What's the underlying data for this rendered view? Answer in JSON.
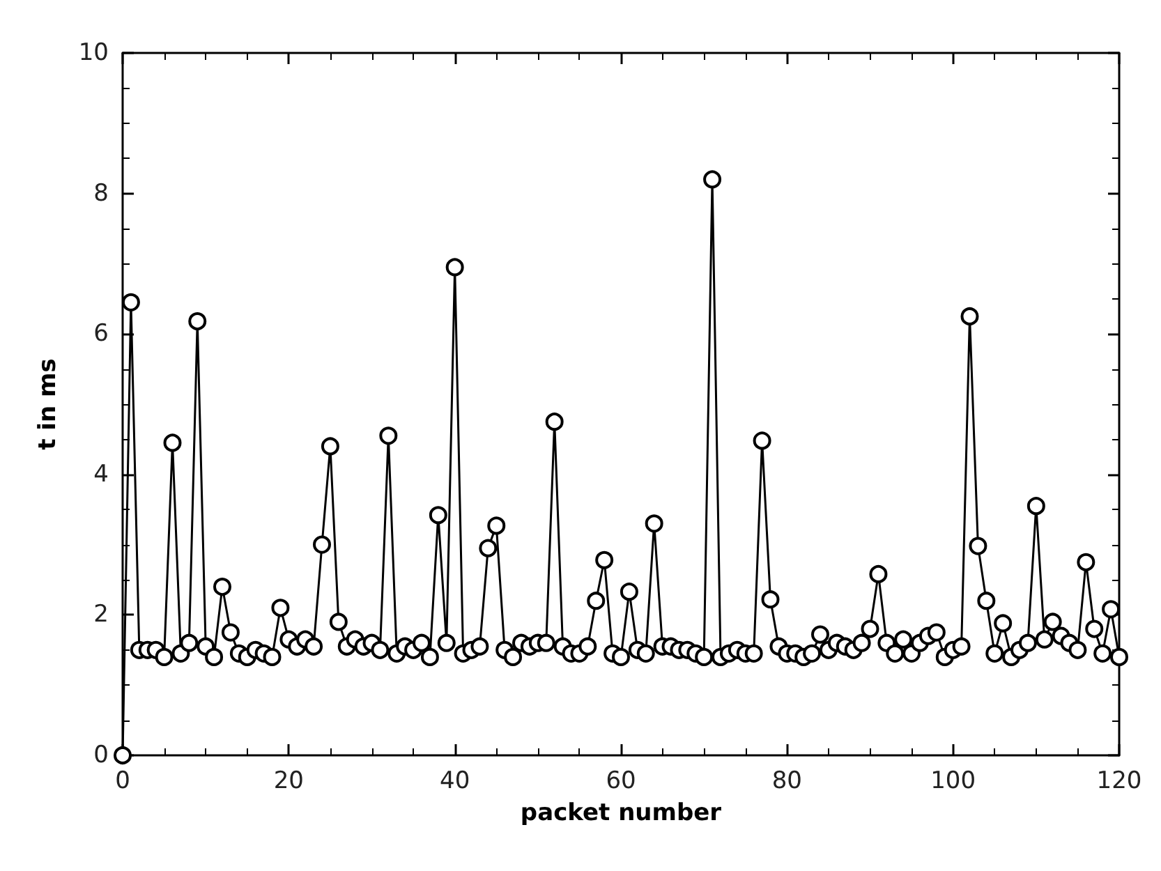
{
  "chart_data": {
    "type": "line",
    "xlabel": "packet number",
    "ylabel": "t in ms",
    "x": [
      0,
      1,
      2,
      3,
      4,
      5,
      6,
      7,
      8,
      9,
      10,
      11,
      12,
      13,
      14,
      15,
      16,
      17,
      18,
      19,
      20,
      21,
      22,
      23,
      24,
      25,
      26,
      27,
      28,
      29,
      30,
      31,
      32,
      33,
      34,
      35,
      36,
      37,
      38,
      39,
      40,
      41,
      42,
      43,
      44,
      45,
      46,
      47,
      48,
      49,
      50,
      51,
      52,
      53,
      54,
      55,
      56,
      57,
      58,
      59,
      60,
      61,
      62,
      63,
      64,
      65,
      66,
      67,
      68,
      69,
      70,
      71,
      72,
      73,
      74,
      75,
      76,
      77,
      78,
      79,
      80,
      81,
      82,
      83,
      84,
      85,
      86,
      87,
      88,
      89,
      90,
      91,
      92,
      93,
      94,
      95,
      96,
      97,
      98,
      99,
      100,
      101,
      102,
      103,
      104,
      105,
      106,
      107,
      108,
      109,
      110,
      111,
      112,
      113,
      114,
      115,
      116,
      117,
      118,
      119,
      120
    ],
    "series": [
      {
        "color": "#000000",
        "values": [
          0,
          6.45,
          1.5,
          1.5,
          1.5,
          1.4,
          4.45,
          1.45,
          1.6,
          6.18,
          1.55,
          1.4,
          2.4,
          1.75,
          1.45,
          1.4,
          1.5,
          1.45,
          1.4,
          2.1,
          1.65,
          1.55,
          1.65,
          1.55,
          3.0,
          4.4,
          1.9,
          1.55,
          1.65,
          1.55,
          1.6,
          1.5,
          4.55,
          1.45,
          1.55,
          1.5,
          1.6,
          1.4,
          3.42,
          1.6,
          6.95,
          1.45,
          1.5,
          1.55,
          2.95,
          3.27,
          1.5,
          1.4,
          1.6,
          1.55,
          1.6,
          1.6,
          4.75,
          1.55,
          1.45,
          1.45,
          1.55,
          2.2,
          2.78,
          1.45,
          1.4,
          2.33,
          1.5,
          1.45,
          3.3,
          1.55,
          1.55,
          1.5,
          1.5,
          1.45,
          1.4,
          8.2,
          1.4,
          1.45,
          1.5,
          1.45,
          1.45,
          4.48,
          2.22,
          1.55,
          1.45,
          1.45,
          1.4,
          1.45,
          1.72,
          1.5,
          1.6,
          1.55,
          1.5,
          1.6,
          1.8,
          2.58,
          1.6,
          1.45,
          1.65,
          1.45,
          1.6,
          1.7,
          1.75,
          1.4,
          1.5,
          1.55,
          6.25,
          2.98,
          2.2,
          1.45,
          1.88,
          1.4,
          1.5,
          1.6,
          3.55,
          1.65,
          1.9,
          1.7,
          1.6,
          1.5,
          2.75,
          1.8,
          1.45,
          2.08,
          1.4
        ]
      }
    ],
    "xlim": [
      0,
      120
    ],
    "xticks": [
      0,
      20,
      40,
      60,
      80,
      100,
      120
    ],
    "ylim": [
      0,
      10
    ],
    "yticks": [
      0,
      2,
      4,
      6,
      8,
      10
    ],
    "grid": false,
    "marker": "circle",
    "line_style": "solid"
  }
}
